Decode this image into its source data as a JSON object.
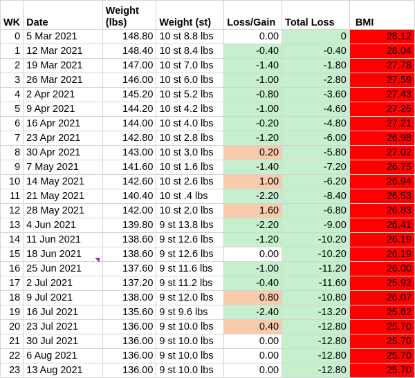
{
  "headers": {
    "wk": "WK",
    "date": "Date",
    "weight_lbs_line1": "Weight",
    "weight_lbs_line2": "(lbs)",
    "weight_st": "Weight (st)",
    "loss_gain": "Loss/Gain",
    "total_loss": "Total Loss",
    "bmi": "BMI"
  },
  "rows": [
    {
      "wk": "0",
      "date": "5 Mar 2021",
      "lbs": "148.80",
      "st": "10 st 8.8 lbs",
      "lg": "0.00",
      "lg_fill": "white",
      "total": "0",
      "bmi": "28.12"
    },
    {
      "wk": "1",
      "date": "12 Mar 2021",
      "lbs": "148.40",
      "st": "10 st 8.4 lbs",
      "lg": "-0.40",
      "lg_fill": "green",
      "total": "-0.40",
      "bmi": "28.04"
    },
    {
      "wk": "2",
      "date": "19 Mar 2021",
      "lbs": "147.00",
      "st": "10 st 7.0 lbs",
      "lg": "-1.40",
      "lg_fill": "green",
      "total": "-1.80",
      "bmi": "27.78"
    },
    {
      "wk": "3",
      "date": "26 Mar 2021",
      "lbs": "146.00",
      "st": "10 st 6.0 lbs",
      "lg": "-1.00",
      "lg_fill": "green",
      "total": "-2.80",
      "bmi": "27.59"
    },
    {
      "wk": "4",
      "date": "2 Apr 2021",
      "lbs": "145.20",
      "st": "10 st 5.2 lbs",
      "lg": "-0.80",
      "lg_fill": "green",
      "total": "-3.60",
      "bmi": "27.43"
    },
    {
      "wk": "5",
      "date": "9 Apr 2021",
      "lbs": "144.20",
      "st": "10 st 4.2 lbs",
      "lg": "-1.00",
      "lg_fill": "green",
      "total": "-4.60",
      "bmi": "27.25"
    },
    {
      "wk": "6",
      "date": "16 Apr 2021",
      "lbs": "144.00",
      "st": "10 st 4.0 lbs",
      "lg": "-0.20",
      "lg_fill": "green",
      "total": "-4.80",
      "bmi": "27.21"
    },
    {
      "wk": "7",
      "date": "23 Apr 2021",
      "lbs": "142.80",
      "st": "10 st 2.8 lbs",
      "lg": "-1.20",
      "lg_fill": "green",
      "total": "-6.00",
      "bmi": "26.98"
    },
    {
      "wk": "8",
      "date": "30 Apr 2021",
      "lbs": "143.00",
      "st": "10 st 3.0 lbs",
      "lg": "0.20",
      "lg_fill": "orange",
      "total": "-5.80",
      "bmi": "27.02"
    },
    {
      "wk": "9",
      "date": "7 May 2021",
      "lbs": "141.60",
      "st": "10 st 1.6 lbs",
      "lg": "-1.40",
      "lg_fill": "green",
      "total": "-7.20",
      "bmi": "26.75"
    },
    {
      "wk": "10",
      "date": "14 May 2021",
      "lbs": "142.60",
      "st": "10 st 2.6 lbs",
      "lg": "1.00",
      "lg_fill": "orange",
      "total": "-6.20",
      "bmi": "26.94"
    },
    {
      "wk": "11",
      "date": "21 May 2021",
      "lbs": "140.40",
      "st": "10 st .4 lbs",
      "lg": "-2.20",
      "lg_fill": "green",
      "total": "-8.40",
      "bmi": "26.53"
    },
    {
      "wk": "12",
      "date": "28 May 2021",
      "lbs": "142.00",
      "st": "10 st 2.0 lbs",
      "lg": "1.60",
      "lg_fill": "orange",
      "total": "-6.80",
      "bmi": "26.83"
    },
    {
      "wk": "13",
      "date": "4 Jun 2021",
      "lbs": "139.80",
      "st": "9 st 13.8 lbs",
      "lg": "-2.20",
      "lg_fill": "green",
      "total": "-9.00",
      "bmi": "26.41"
    },
    {
      "wk": "14",
      "date": "11 Jun 2021",
      "lbs": "138.60",
      "st": "9 st 12.6 lbs",
      "lg": "-1.20",
      "lg_fill": "green",
      "total": "-10.20",
      "bmi": "26.19"
    },
    {
      "wk": "15",
      "date": "18 Jun 2021",
      "lbs": "138.60",
      "st": "9 st 12.6 lbs",
      "lg": "0.00",
      "lg_fill": "white",
      "total": "-10.20",
      "bmi": "26.19"
    },
    {
      "wk": "16",
      "date": "25 Jun 2021",
      "lbs": "137.60",
      "st": "9 st 11.6 lbs",
      "lg": "-1.00",
      "lg_fill": "green",
      "total": "-11.20",
      "bmi": "26.00"
    },
    {
      "wk": "17",
      "date": "2 Jul 2021",
      "lbs": "137.20",
      "st": "9 st 11.2 lbs",
      "lg": "-0.40",
      "lg_fill": "green",
      "total": "-11.60",
      "bmi": "25.92"
    },
    {
      "wk": "18",
      "date": "9 Jul 2021",
      "lbs": "138.00",
      "st": "9 st 12.0 lbs",
      "lg": "0.80",
      "lg_fill": "orange",
      "total": "-10.80",
      "bmi": "26.07"
    },
    {
      "wk": "19",
      "date": "16 Jul 2021",
      "lbs": "135.60",
      "st": "9 st 9.6 lbs",
      "lg": "-2.40",
      "lg_fill": "green",
      "total": "-13.20",
      "bmi": "25.62"
    },
    {
      "wk": "20",
      "date": "23 Jul 2021",
      "lbs": "136.00",
      "st": "9 st 10.0 lbs",
      "lg": "0.40",
      "lg_fill": "orange",
      "total": "-12.80",
      "bmi": "25.70"
    },
    {
      "wk": "21",
      "date": "30 Jul 2021",
      "lbs": "136.00",
      "st": "9 st 10.0 lbs",
      "lg": "0.00",
      "lg_fill": "white",
      "total": "-12.80",
      "bmi": "25.70"
    },
    {
      "wk": "22",
      "date": "6 Aug 2021",
      "lbs": "136.00",
      "st": "9 st 10.0 lbs",
      "lg": "0.00",
      "lg_fill": "white",
      "total": "-12.80",
      "bmi": "25.70"
    },
    {
      "wk": "23",
      "date": "13 Aug 2021",
      "lbs": "136.00",
      "st": "9 st 10.0 lbs",
      "lg": "0.00",
      "lg_fill": "white",
      "total": "-12.80",
      "bmi": "25.70"
    }
  ],
  "colors": {
    "decrease_fill": "#c6efce",
    "increase_fill": "#f8cbad",
    "bmi_fill": "#ff0000",
    "comment_marker": "#8b36a8"
  }
}
